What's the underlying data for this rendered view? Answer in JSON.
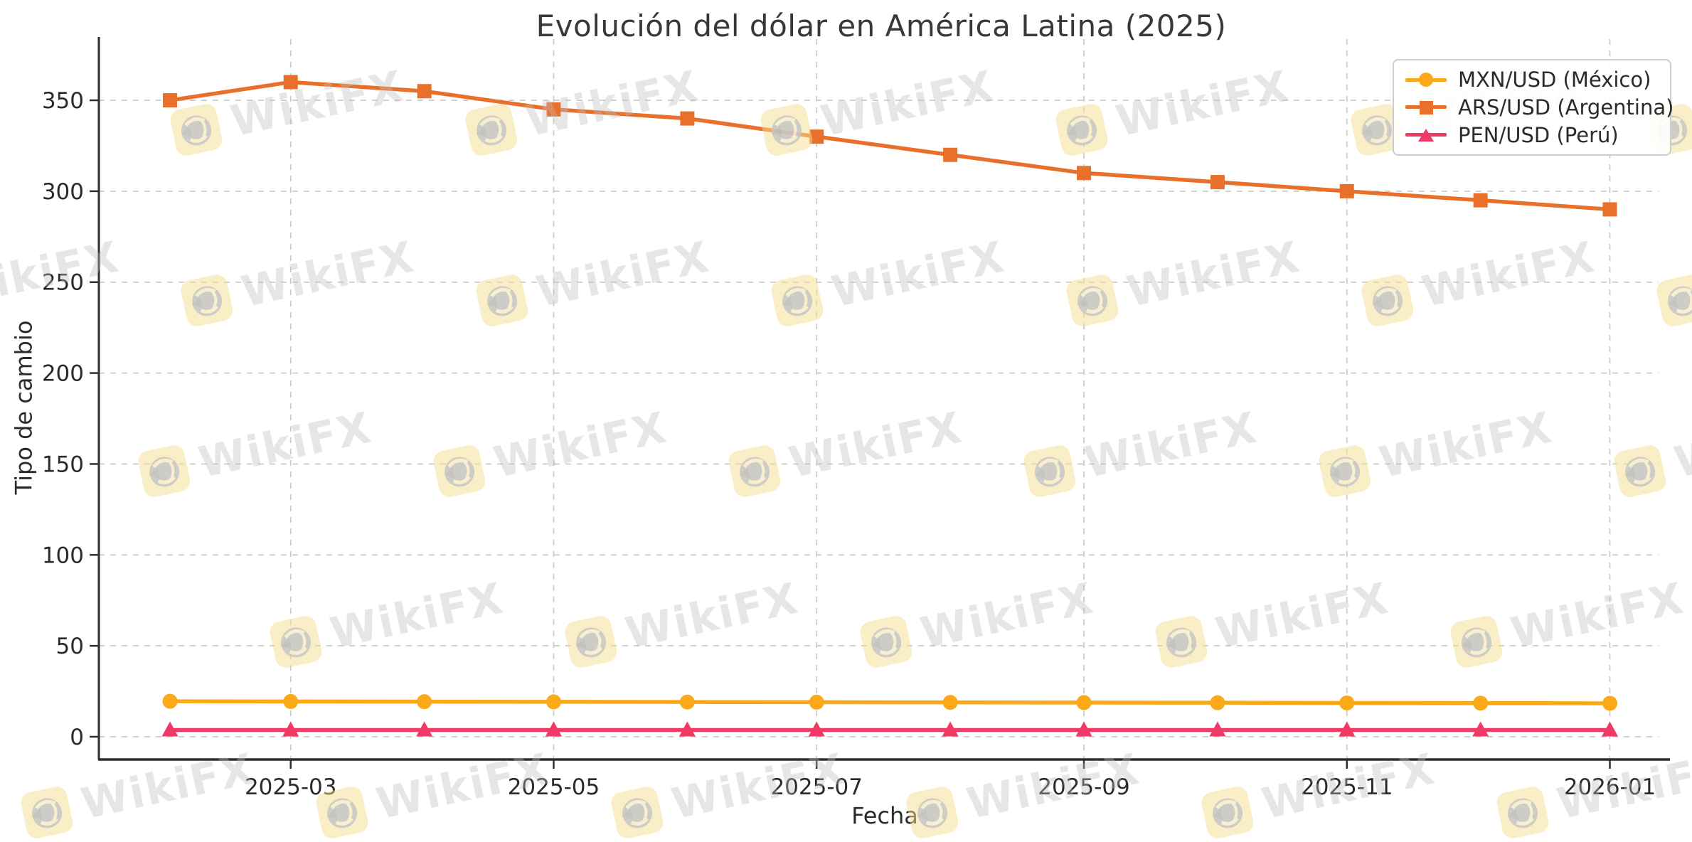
{
  "watermark": {
    "text": "WikiFX"
  },
  "chart_data": {
    "type": "line",
    "title": "Evolución del dólar en América Latina (2025)",
    "xlabel": "Fecha",
    "ylabel": "Tipo de cambio",
    "grid": "dashed, both axes, light gray",
    "legend_position": "upper right",
    "x_months": [
      "2025-02",
      "2025-03",
      "2025-04",
      "2025-05",
      "2025-06",
      "2025-07",
      "2025-08",
      "2025-09",
      "2025-10",
      "2025-11",
      "2025-12",
      "2026-01"
    ],
    "x_day_offsets": [
      0,
      28,
      59,
      89,
      120,
      150,
      181,
      212,
      243,
      273,
      304,
      334
    ],
    "x_tick_labels": [
      "2025-03",
      "2025-05",
      "2025-07",
      "2025-09",
      "2025-11",
      "2026-01"
    ],
    "x_tick_day_offsets": [
      28,
      89,
      150,
      212,
      273,
      334
    ],
    "y_ticks": [
      0,
      50,
      100,
      150,
      200,
      250,
      300,
      350
    ],
    "ylim": [
      -13,
      384
    ],
    "series": [
      {
        "name": "MXN/USD (México)",
        "marker": "circle",
        "color": "#FBA819",
        "values": [
          19.5,
          19.4,
          19.3,
          19.2,
          19.1,
          19.0,
          18.9,
          18.8,
          18.7,
          18.6,
          18.5,
          18.4
        ]
      },
      {
        "name": "ARS/USD (Argentina)",
        "marker": "square",
        "color": "#E8702A",
        "values": [
          350,
          360,
          355,
          345,
          340,
          330,
          320,
          310,
          305,
          300,
          295,
          290
        ]
      },
      {
        "name": "PEN/USD (Perú)",
        "marker": "triangle",
        "color": "#EE3A65",
        "values": [
          3.7,
          3.7,
          3.7,
          3.7,
          3.7,
          3.7,
          3.7,
          3.7,
          3.7,
          3.7,
          3.7,
          3.7
        ]
      }
    ]
  }
}
